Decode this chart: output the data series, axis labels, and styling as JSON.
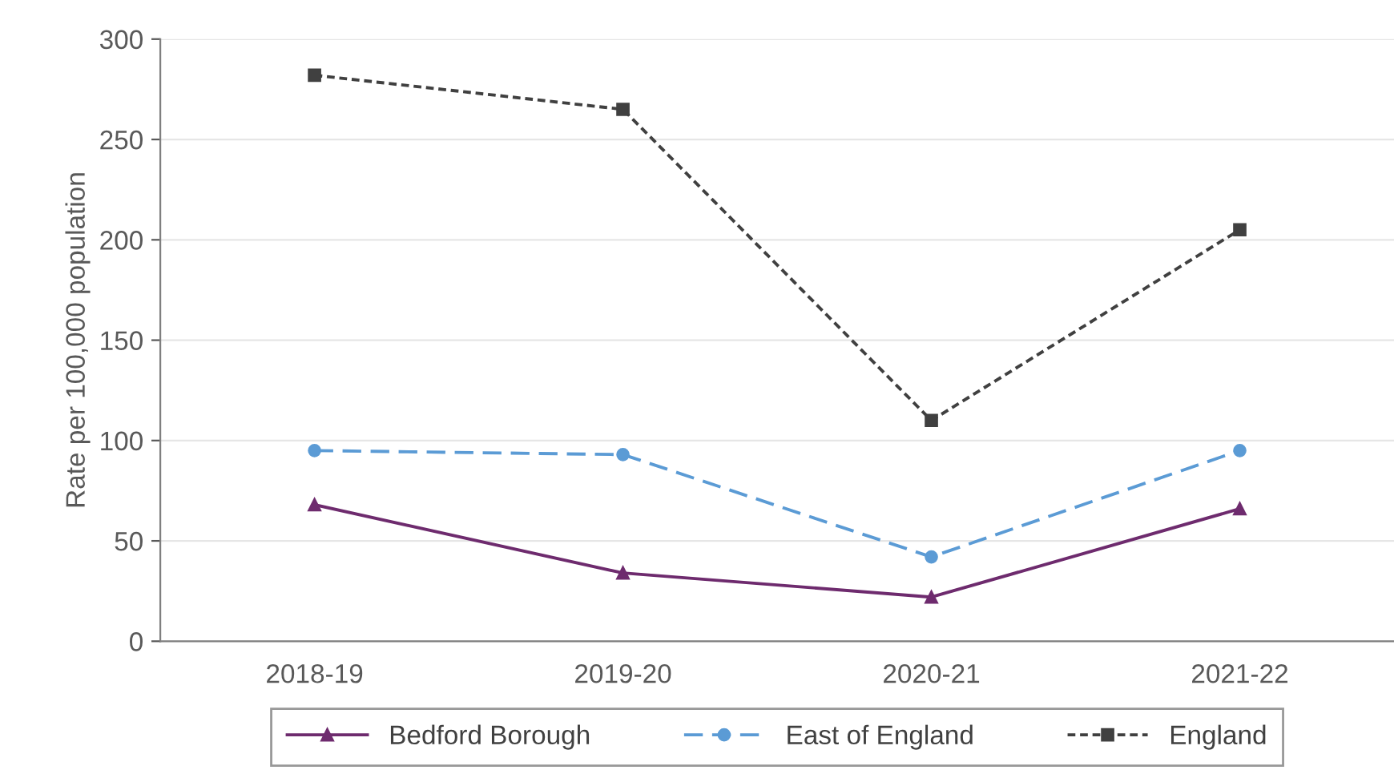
{
  "chart_data": {
    "type": "line",
    "ylabel": "Rate per 100,000 population",
    "categories": [
      "2018-19",
      "2019-20",
      "2020-21",
      "2021-22"
    ],
    "series": [
      {
        "name": "Bedford Borough",
        "color": "#6e2b6e",
        "values": [
          68,
          34,
          22,
          66
        ],
        "marker": "triangle",
        "line_style": "solid"
      },
      {
        "name": "East of England",
        "color": "#5b9bd5",
        "values": [
          95,
          93,
          42,
          95
        ],
        "marker": "circle",
        "line_style": "dashed"
      },
      {
        "name": "England",
        "color": "#404040",
        "values": [
          282,
          265,
          110,
          205
        ],
        "marker": "square",
        "line_style": "dotted"
      }
    ],
    "ylim": [
      0,
      300
    ],
    "yticks": [
      0,
      50,
      100,
      150,
      200,
      250,
      300
    ],
    "grid": "y",
    "legend": "bottom"
  }
}
